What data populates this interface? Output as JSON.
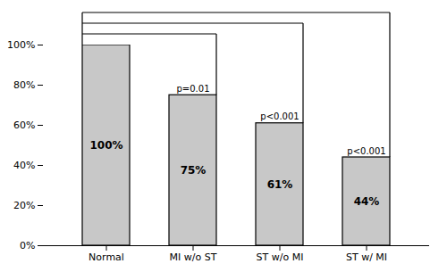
{
  "chart_data": {
    "type": "bar",
    "categories": [
      "Normal",
      "MI w/o ST",
      "ST w/o MI",
      "ST w/ MI"
    ],
    "values": [
      100,
      75,
      61,
      44
    ],
    "value_labels": [
      "100%",
      "75%",
      "61%",
      "44%"
    ],
    "data_labels": true,
    "color": "#c8c8c8",
    "ylim": [
      0,
      100
    ],
    "yticks": [
      {
        "value": 0,
        "label": "0%"
      },
      {
        "value": 20,
        "label": "20%"
      },
      {
        "value": 40,
        "label": "40%"
      },
      {
        "value": 60,
        "label": "60%"
      },
      {
        "value": 80,
        "label": "80%"
      },
      {
        "value": 100,
        "label": "100%"
      }
    ],
    "annotations": [
      {
        "category": "MI w/o ST",
        "text": "p=0.01"
      },
      {
        "category": "ST w/o MI",
        "text": "p<0.001"
      },
      {
        "category": "ST w/ MI",
        "text": "p<0.001"
      }
    ],
    "grid": false
  }
}
